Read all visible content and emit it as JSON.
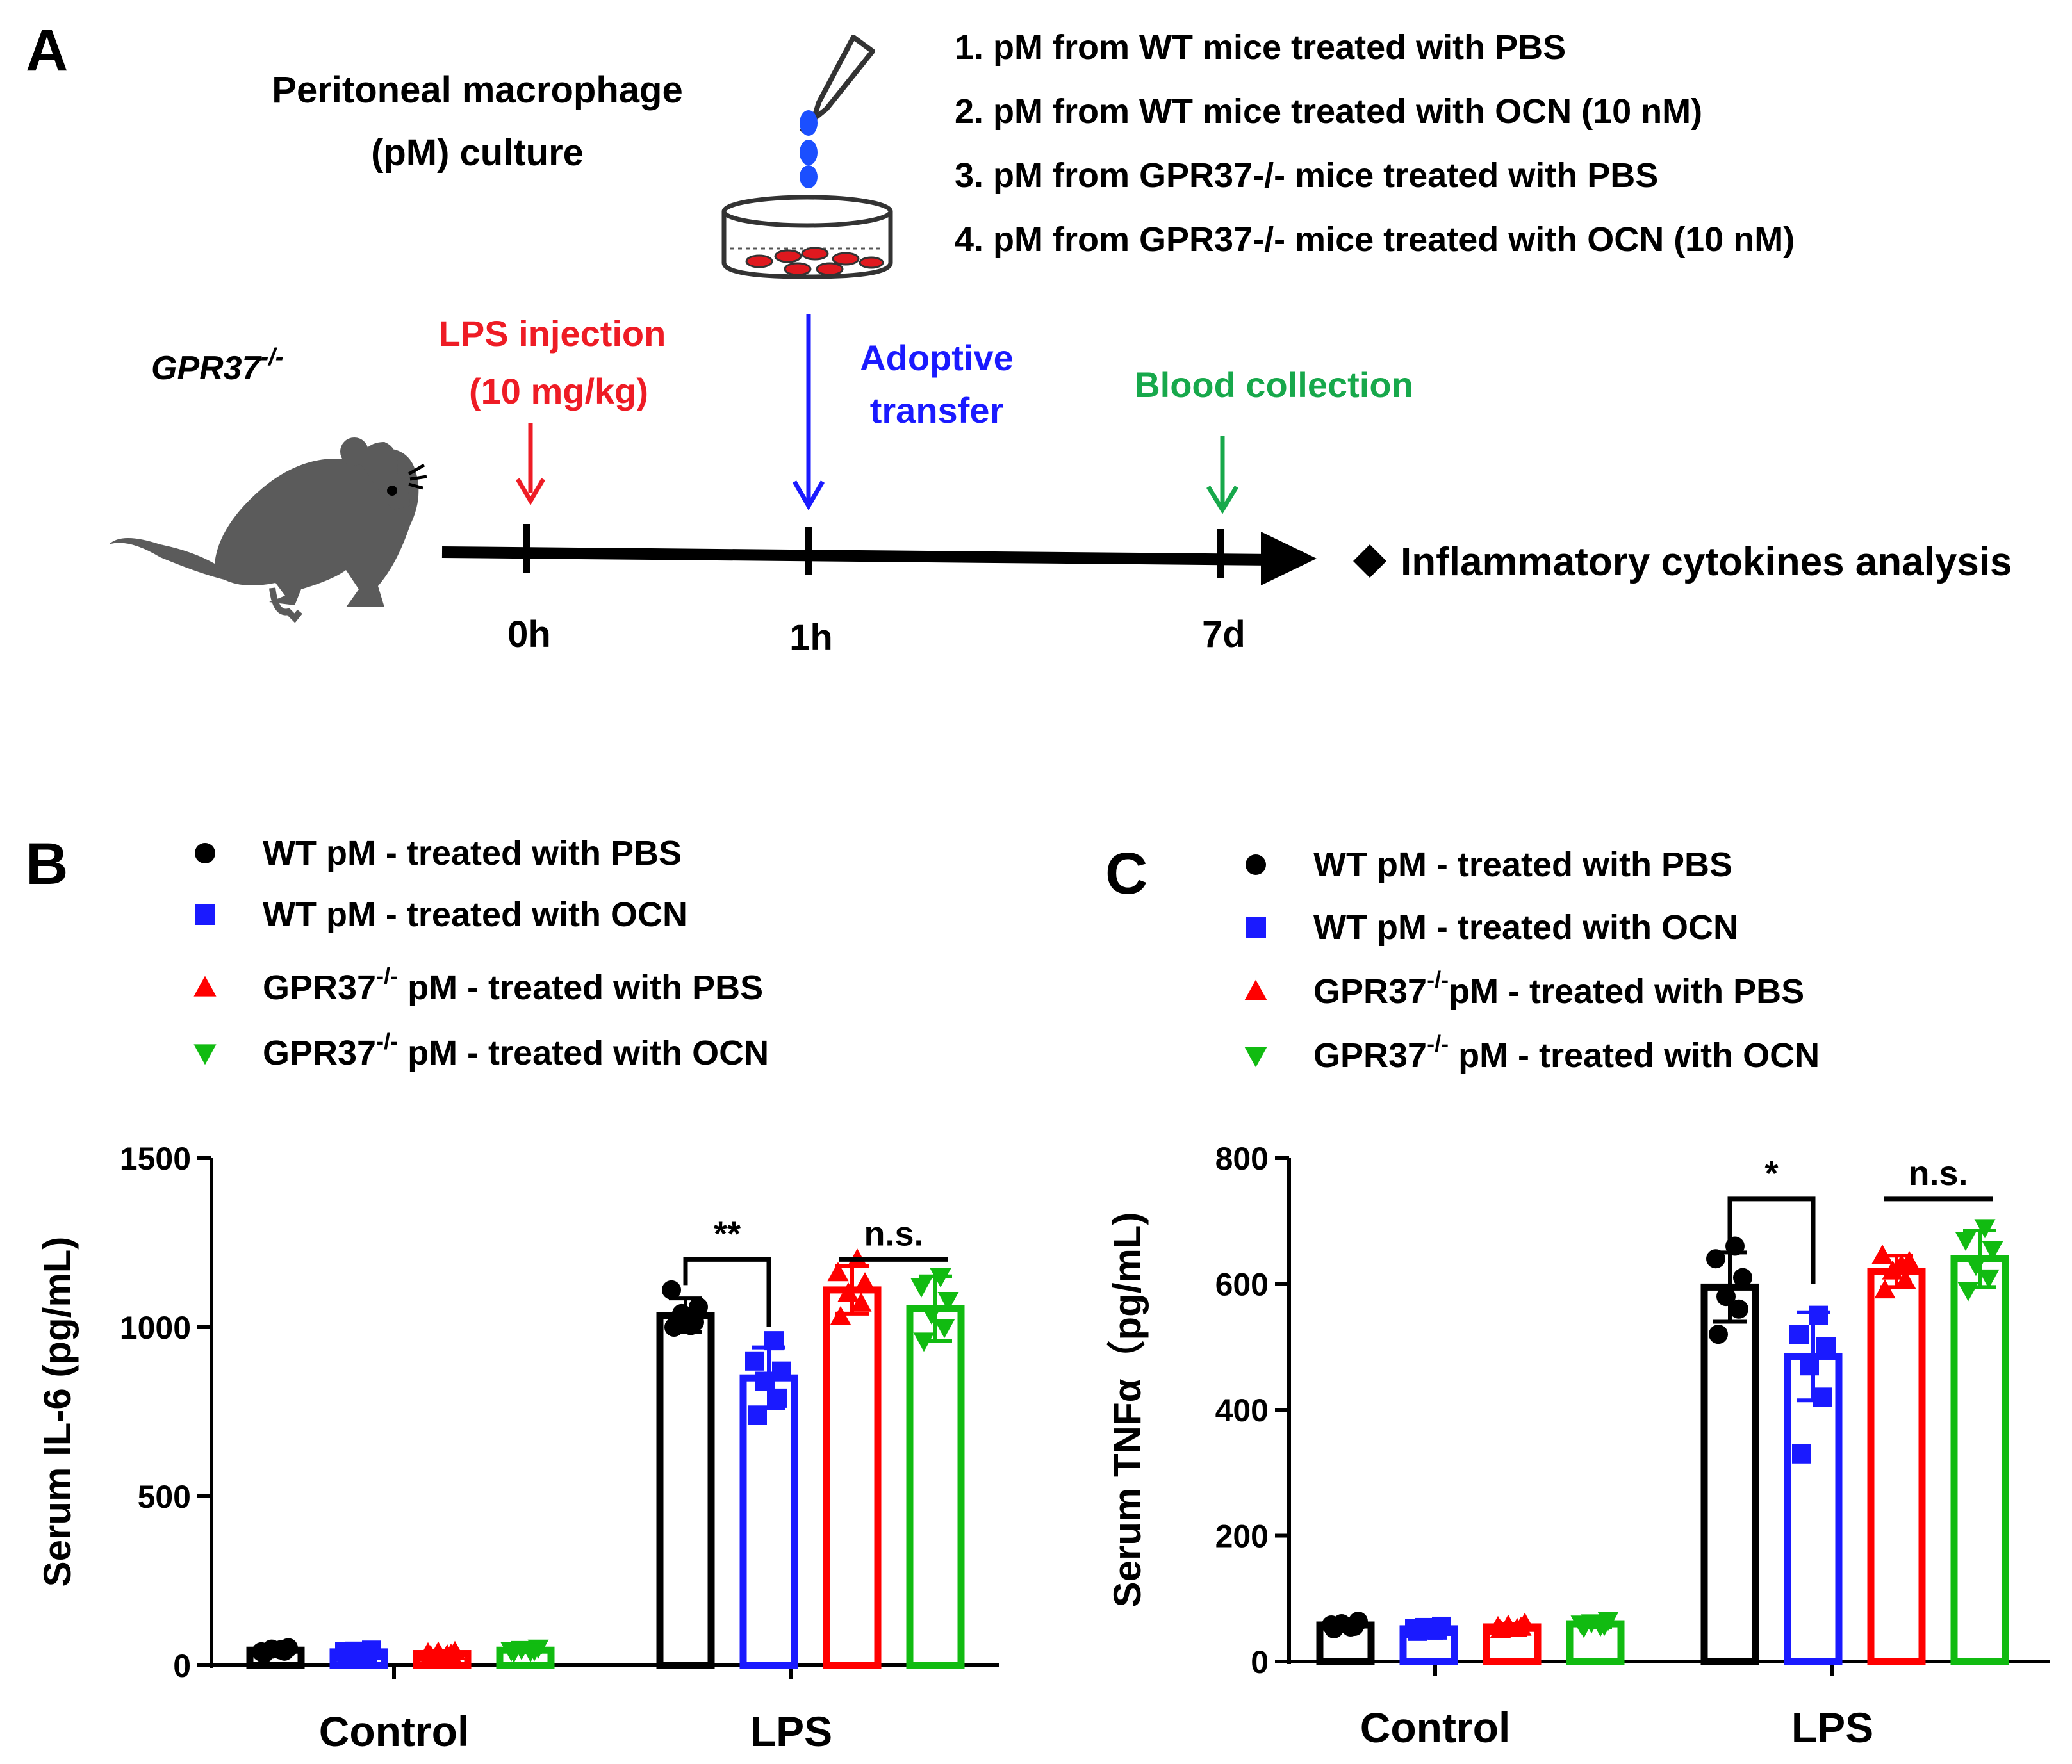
{
  "panelA": {
    "panel_label": "A",
    "culture_label_line1": "Peritoneal macrophage",
    "culture_label_line2": "(pM) culture",
    "conditions": [
      "1. pM  from WT mice treated with PBS",
      "2. pM  from WT mice treated with OCN (10 nM)",
      "3. pM from GPR37-/- mice treated with PBS",
      "4. pM from GPR37-/- mice treated with OCN (10 nM)"
    ],
    "mouse_label": "GPR37",
    "mouse_label_sup": "-/-",
    "lps_line1": "LPS injection",
    "lps_line2": "(10 mg/kg)",
    "adoptive_line1": "Adoptive",
    "adoptive_line2": "transfer",
    "blood": "Blood collection",
    "analysis": "Inflammatory cytokines  analysis",
    "timepoints": [
      "0h",
      "1h",
      "7d"
    ],
    "colors": {
      "lps": "#ee1c25",
      "adoptive": "#1a1aff",
      "blood": "#17a84b",
      "dish_drop": "#1b4fff",
      "cells": "#e0191f",
      "mouse": "#5b5b5b"
    }
  },
  "chart_data": [
    {
      "panel_label": "B",
      "type": "bar",
      "title": "",
      "xlabel": "",
      "ylabel": "Serum IL-6 (pg/mL)",
      "ylim": [
        0,
        1500
      ],
      "yticks": [
        "0",
        "500",
        "1000",
        "1500"
      ],
      "categories": [
        "Control",
        "LPS"
      ],
      "legend": [
        {
          "pre": "WT pM - treated with PBS",
          "sup": "",
          "post": "",
          "marker": "circle"
        },
        {
          "pre": "WT pM - treated with OCN",
          "sup": "",
          "post": "",
          "marker": "square"
        },
        {
          "pre": "GPR37",
          "sup": "-/-",
          "post": " pM - treated with PBS",
          "marker": "triangle-up"
        },
        {
          "pre": "GPR37",
          "sup": "-/-",
          "post": " pM - treated with OCN",
          "marker": "triangle-down"
        }
      ],
      "series": [
        {
          "name": "WT pM - treated with PBS",
          "color": "#000000",
          "marker": "circle",
          "values": [
            45,
            1035
          ],
          "error": [
            8,
            50
          ],
          "points": [
            [
              35,
              42,
              48,
              52,
              40,
              46
            ],
            [
              1000,
              1015,
              1040,
              1060,
              1110,
              1005
            ]
          ]
        },
        {
          "name": "WT pM - treated with OCN",
          "color": "#1a1aff",
          "marker": "square",
          "values": [
            40,
            850
          ],
          "error": [
            5,
            90
          ],
          "points": [
            [
              35,
              38,
              42,
              45,
              40,
              38
            ],
            [
              740,
              790,
              840,
              870,
              900,
              960
            ]
          ]
        },
        {
          "name": "GPR37-/- pM - treated with PBS",
          "color": "#ff0000",
          "marker": "triangle-up",
          "values": [
            35,
            1110
          ],
          "error": [
            8,
            70
          ],
          "points": [
            [
              28,
              32,
              38,
              40,
              36,
              30
            ],
            [
              1030,
              1070,
              1100,
              1130,
              1160,
              1200
            ]
          ]
        },
        {
          "name": "GPR37-/- pM - treated with OCN",
          "color": "#11bb11",
          "marker": "triangle-down",
          "values": [
            45,
            1055
          ],
          "error": [
            6,
            95
          ],
          "points": [
            [
              40,
              45,
              48,
              52,
              44,
              42
            ],
            [
              960,
              1000,
              1040,
              1080,
              1120,
              1150
            ]
          ]
        }
      ],
      "significance": [
        {
          "group": "LPS",
          "from": 0,
          "to": 1,
          "label": "**",
          "bracket_level": 1200,
          "drop_to": [
            1200,
            1000
          ]
        },
        {
          "group": "LPS",
          "from": 2,
          "to": 3,
          "label": "n.s.",
          "bracket_level": 1200,
          "drop_to": null
        }
      ]
    },
    {
      "panel_label": "C",
      "type": "bar",
      "title": "",
      "xlabel": "",
      "ylabel": "Serum TNFα（pg/mL)",
      "ylim": [
        0,
        800
      ],
      "yticks": [
        "0",
        "200",
        "400",
        "600",
        "800"
      ],
      "categories": [
        "Control",
        "LPS"
      ],
      "legend": [
        {
          "pre": "WT pM - treated with PBS",
          "sup": "",
          "post": "",
          "marker": "circle"
        },
        {
          "pre": "WT pM - treated with OCN",
          "sup": "",
          "post": "",
          "marker": "square"
        },
        {
          "pre": "GPR37",
          "sup": "-/-",
          "post": "pM - treated with PBS",
          "marker": "triangle-up"
        },
        {
          "pre": "GPR37",
          "sup": "-/-",
          "post": " pM - treated with OCN",
          "marker": "triangle-down"
        }
      ],
      "series": [
        {
          "name": "WT pM - treated with PBS",
          "color": "#000000",
          "marker": "circle",
          "values": [
            58,
            595
          ],
          "error": [
            6,
            55
          ],
          "points": [
            [
              52,
              56,
              60,
              64,
              58,
              55
            ],
            [
              520,
              560,
              580,
              610,
              640,
              660
            ]
          ]
        },
        {
          "name": "WT pM - treated with OCN",
          "color": "#1a1aff",
          "marker": "square",
          "values": [
            52,
            485
          ],
          "error": [
            5,
            70
          ],
          "points": [
            [
              48,
              50,
              54,
              56,
              52,
              50
            ],
            [
              330,
              420,
              470,
              500,
              520,
              550
            ]
          ]
        },
        {
          "name": "GPR37-/- pM - treated with PBS",
          "color": "#ff0000",
          "marker": "triangle-up",
          "values": [
            55,
            620
          ],
          "error": [
            5,
            25
          ],
          "points": [
            [
              50,
              54,
              57,
              60,
              55,
              52
            ],
            [
              590,
              605,
              620,
              635,
              645,
              630
            ]
          ]
        },
        {
          "name": "GPR37-/- pM - treated with OCN",
          "color": "#11bb11",
          "marker": "triangle-down",
          "values": [
            60,
            640
          ],
          "error": [
            6,
            45
          ],
          "points": [
            [
              55,
              58,
              62,
              66,
              60,
              57
            ],
            [
              590,
              610,
              630,
              655,
              670,
              690
            ]
          ]
        }
      ],
      "significance": [
        {
          "group": "LPS",
          "from": 0,
          "to": 1,
          "label": "*",
          "bracket_level": 735,
          "drop_to": [
            700,
            600
          ]
        },
        {
          "group": "LPS",
          "from": 2,
          "to": 3,
          "label": "n.s.",
          "bracket_level": 735,
          "drop_to": null
        }
      ]
    }
  ]
}
